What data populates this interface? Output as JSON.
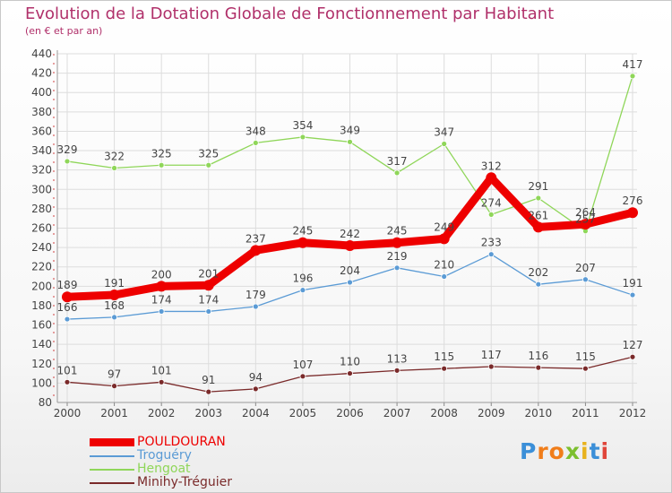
{
  "header": {
    "title": "Evolution de la Dotation Globale de Fonctionnement par Habitant",
    "subtitle": "(en € et par an)"
  },
  "chart_data": {
    "type": "line",
    "title": "Evolution de la Dotation Globale de Fonctionnement par Habitant",
    "subtitle": "(en € et par an)",
    "xlabel": "",
    "ylabel": "",
    "categories": [
      "2000",
      "2001",
      "2002",
      "2003",
      "2004",
      "2005",
      "2006",
      "2007",
      "2008",
      "2009",
      "2010",
      "2011",
      "2012"
    ],
    "ylim": [
      80,
      440
    ],
    "yticks": [
      80,
      100,
      120,
      140,
      160,
      180,
      200,
      220,
      240,
      260,
      280,
      300,
      320,
      340,
      360,
      380,
      400,
      420,
      440
    ],
    "grid": true,
    "legend_position": "bottom-left",
    "series": [
      {
        "name": "POULDOURAN",
        "color": "#ee0000",
        "values": [
          189,
          191,
          200,
          201,
          237,
          245,
          242,
          245,
          249,
          312,
          261,
          264,
          276
        ]
      },
      {
        "name": "Troguéry",
        "color": "#5b9bd5",
        "values": [
          166,
          168,
          174,
          174,
          179,
          196,
          204,
          219,
          210,
          233,
          202,
          207,
          191
        ]
      },
      {
        "name": "Hengoat",
        "color": "#8fd659",
        "values": [
          329,
          322,
          325,
          325,
          348,
          354,
          349,
          317,
          347,
          274,
          291,
          257,
          417
        ]
      },
      {
        "name": "Minihy-Tréguier",
        "color": "#7a2a2a",
        "values": [
          101,
          97,
          101,
          91,
          94,
          107,
          110,
          113,
          115,
          117,
          116,
          115,
          127
        ]
      }
    ],
    "data_labels": {
      "POULDOURAN": [
        "189",
        "191",
        "200",
        "201",
        "237",
        "245",
        "242",
        "245",
        "249",
        "312",
        "261",
        "264",
        "276"
      ],
      "Troguéry": [
        "166",
        "168",
        "174",
        "174",
        "179",
        "196",
        "204",
        "219",
        "210",
        "233",
        "202",
        "207",
        "191"
      ],
      "Hengoat": [
        "329",
        "322",
        "325",
        "325",
        "348",
        "354",
        "349",
        "317",
        "347",
        "274",
        "291",
        "257",
        "417"
      ],
      "Minihy-Tréguier": [
        "101",
        "97",
        "101",
        "91",
        "94",
        "107",
        "110",
        "113",
        "115",
        "117",
        "116",
        "115",
        "127"
      ]
    }
  },
  "legend": {
    "items": [
      {
        "label": "POULDOURAN",
        "color": "#ee0000"
      },
      {
        "label": "Troguéry",
        "color": "#5b9bd5"
      },
      {
        "label": "Hengoat",
        "color": "#8fd659"
      },
      {
        "label": "Minihy-Tréguier",
        "color": "#7a2a2a"
      }
    ]
  },
  "logo": {
    "letters": [
      "P",
      "r",
      "o",
      "x",
      "i",
      "t",
      "i"
    ],
    "colors": [
      "#3b8fd8",
      "#f07d1a",
      "#f07d1a",
      "#7cbf2e",
      "#e8b21e",
      "#3b8fd8",
      "#e0453a"
    ]
  }
}
